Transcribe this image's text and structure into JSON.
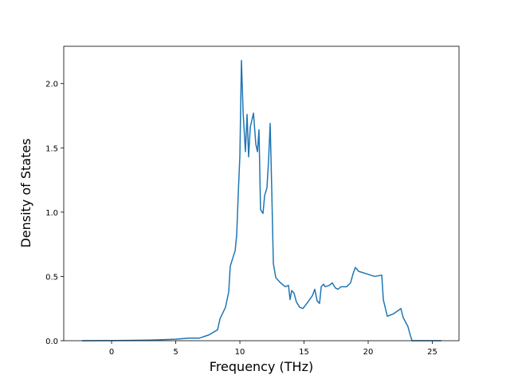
{
  "chart_data": {
    "type": "line",
    "x_label": "Frequency (THz)",
    "y_label": "Density of States",
    "x": [
      -2.3,
      0,
      3,
      5,
      6,
      6.83,
      7.58,
      8.26,
      8.45,
      8.88,
      9.13,
      9.25,
      9.63,
      9.75,
      9.88,
      10.0,
      10.12,
      10.25,
      10.43,
      10.56,
      10.68,
      10.81,
      11.06,
      11.24,
      11.37,
      11.49,
      11.61,
      11.8,
      11.93,
      12.11,
      12.24,
      12.36,
      12.48,
      12.61,
      12.8,
      13.17,
      13.54,
      13.79,
      13.91,
      14.04,
      14.22,
      14.41,
      14.66,
      14.91,
      15.22,
      15.65,
      15.84,
      16.02,
      16.21,
      16.34,
      16.52,
      16.65,
      16.96,
      17.2,
      17.45,
      17.64,
      17.89,
      18.32,
      18.63,
      18.82,
      19.0,
      19.25,
      19.88,
      20.5,
      21.06,
      21.18,
      21.49,
      21.99,
      22.55,
      22.73,
      23.1,
      23.29,
      23.42,
      25.7
    ],
    "values": [
      0,
      0.001,
      0.005,
      0.012,
      0.02,
      0.02,
      0.045,
      0.085,
      0.17,
      0.26,
      0.38,
      0.58,
      0.7,
      0.82,
      1.16,
      1.44,
      2.18,
      1.78,
      1.47,
      1.76,
      1.43,
      1.66,
      1.77,
      1.53,
      1.47,
      1.64,
      1.02,
      0.99,
      1.13,
      1.19,
      1.41,
      1.69,
      1.19,
      0.6,
      0.49,
      0.45,
      0.42,
      0.43,
      0.32,
      0.39,
      0.37,
      0.3,
      0.26,
      0.25,
      0.29,
      0.35,
      0.4,
      0.31,
      0.29,
      0.42,
      0.44,
      0.42,
      0.43,
      0.45,
      0.41,
      0.4,
      0.42,
      0.42,
      0.45,
      0.52,
      0.57,
      0.54,
      0.52,
      0.5,
      0.51,
      0.32,
      0.19,
      0.21,
      0.25,
      0.18,
      0.11,
      0.04,
      0,
      0
    ],
    "color": "#1f77b4",
    "xlim": [
      -3.73,
      27.08
    ],
    "ylim": [
      0,
      2.29
    ],
    "xticks": [
      0,
      5,
      10,
      15,
      20,
      25
    ],
    "yticks": [
      {
        "value": 0,
        "label": "0.0"
      },
      {
        "value": 0.5,
        "label": "0.5"
      },
      {
        "value": 1,
        "label": "1.0"
      },
      {
        "value": 1.5,
        "label": "1.5"
      },
      {
        "value": 2,
        "label": "2.0"
      }
    ]
  }
}
